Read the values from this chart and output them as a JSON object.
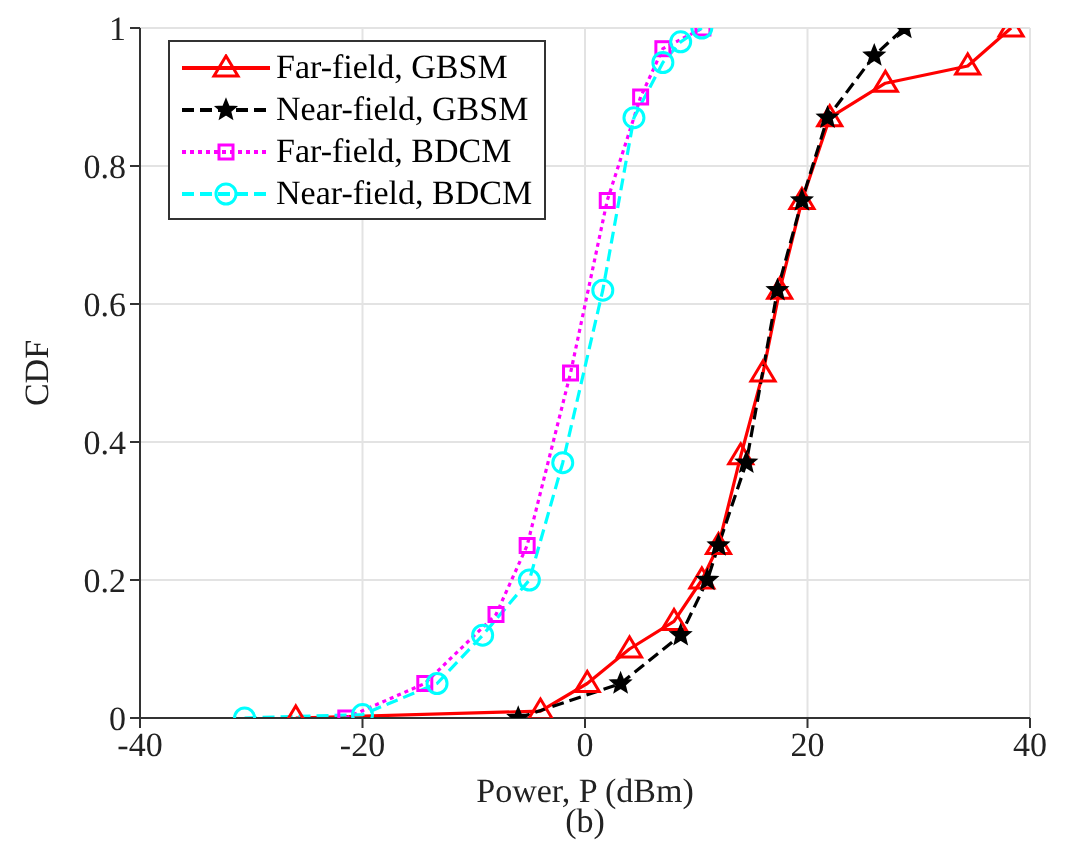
{
  "chart_data": {
    "type": "line",
    "xlabel": "Power, P (dBm)",
    "ylabel": "CDF",
    "annotations": [
      "(b)"
    ],
    "xlim": [
      -40,
      40
    ],
    "xticks": [
      -40,
      -20,
      0,
      20,
      40
    ],
    "ylim": [
      0,
      1
    ],
    "yticks": [
      0,
      0.2,
      0.4,
      0.6,
      0.8,
      1
    ],
    "grid": true,
    "legend": "top left",
    "series": [
      {
        "name": "Far-field, GBSM",
        "color": "#ff0000",
        "marker": "triangle",
        "line_style": "solid",
        "x": [
          -26,
          -4,
          0.2,
          4,
          8,
          10.5,
          12,
          14,
          16,
          17.5,
          19.5,
          22,
          27,
          34.4,
          38.3
        ],
        "values": [
          0,
          0.01,
          0.05,
          0.1,
          0.14,
          0.2,
          0.25,
          0.38,
          0.5,
          0.62,
          0.75,
          0.87,
          0.92,
          0.945,
          1
        ]
      },
      {
        "name": "Near-field, GBSM",
        "color": "#000000",
        "marker": "star",
        "line_style": "dashed",
        "x": [
          -6,
          3.2,
          8.6,
          11,
          12,
          14.5,
          17.3,
          19.5,
          21.8,
          26,
          28.7
        ],
        "values": [
          0,
          0.05,
          0.12,
          0.2,
          0.25,
          0.37,
          0.62,
          0.75,
          0.87,
          0.96,
          1
        ]
      },
      {
        "name": "Far-field, BDCM",
        "color": "#ff00ff",
        "marker": "square",
        "line_style": "dotted",
        "x": [
          -21.5,
          -14.4,
          -8,
          -5.2,
          -1.3,
          2,
          5,
          7,
          10.6
        ],
        "values": [
          0,
          0.05,
          0.15,
          0.25,
          0.5,
          0.75,
          0.9,
          0.97,
          1
        ]
      },
      {
        "name": "Near-field, BDCM",
        "color": "#00ffff",
        "marker": "circle",
        "line_style": "dashed",
        "x": [
          -30.6,
          -20,
          -13.3,
          -9.2,
          -5,
          -2,
          1.6,
          4.4,
          7,
          8.6,
          10.5
        ],
        "values": [
          0,
          0.005,
          0.05,
          0.12,
          0.2,
          0.37,
          0.62,
          0.87,
          0.95,
          0.98,
          1
        ]
      }
    ]
  }
}
